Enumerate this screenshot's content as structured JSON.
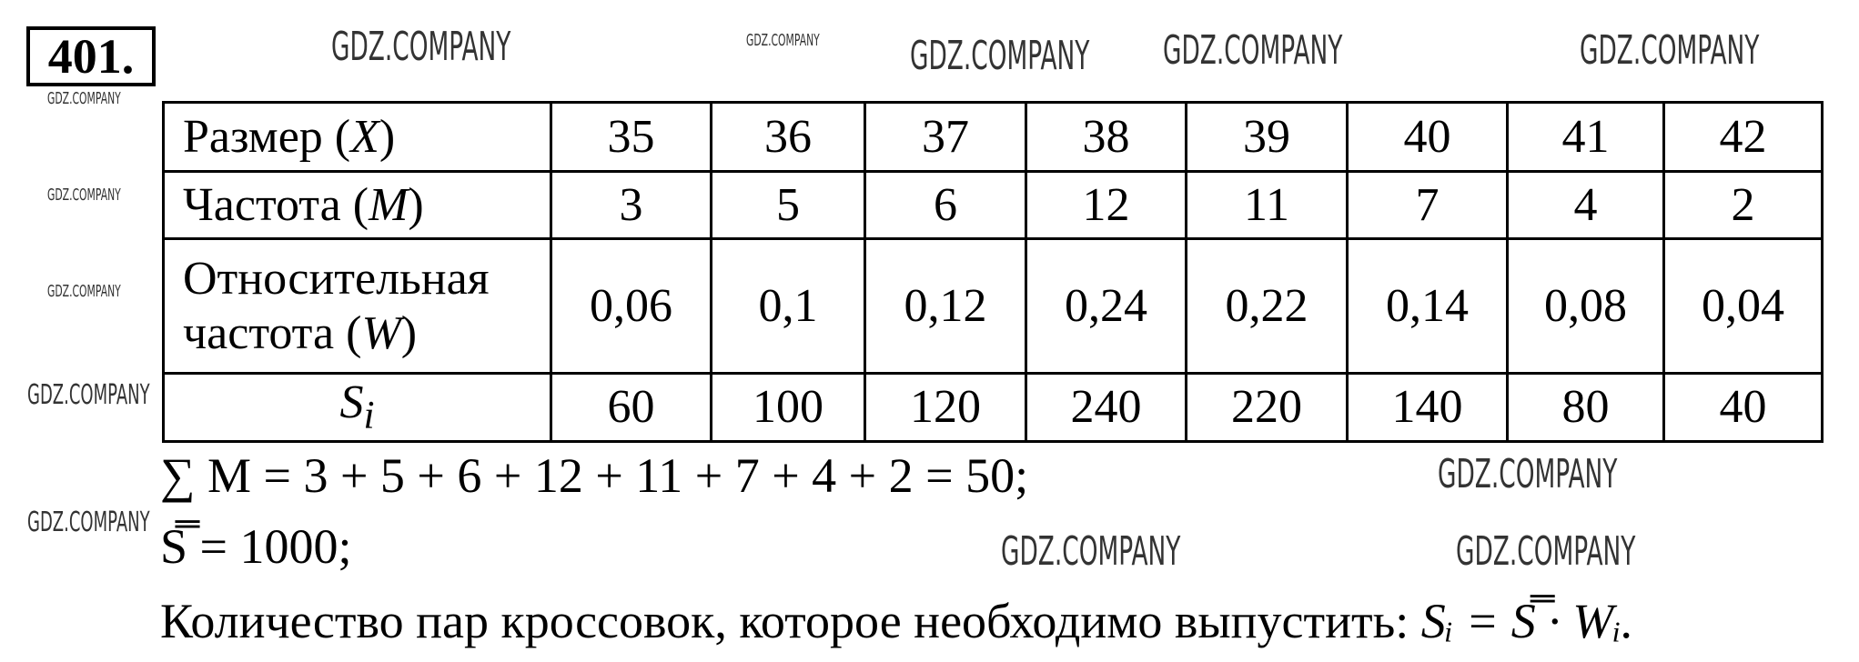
{
  "problem_number": "401.",
  "table": {
    "rows": [
      {
        "label": "Размер (X)",
        "label_text": "Размер ",
        "var": "X",
        "values": [
          "35",
          "36",
          "37",
          "38",
          "39",
          "40",
          "41",
          "42"
        ]
      },
      {
        "label": "Частота (M)",
        "label_text": "Частота ",
        "var": "M",
        "values": [
          "3",
          "5",
          "6",
          "12",
          "11",
          "7",
          "4",
          "2"
        ]
      },
      {
        "label": "Относительная частота (W)",
        "label_text1": "Относительная",
        "label_text2": "частота ",
        "var": "W",
        "values": [
          "0,06",
          "0,1",
          "0,12",
          "0,24",
          "0,22",
          "0,14",
          "0,08",
          "0,04"
        ]
      },
      {
        "label": "Si",
        "var": "S",
        "sub": "i",
        "values": [
          "60",
          "100",
          "120",
          "240",
          "220",
          "140",
          "80",
          "40"
        ]
      }
    ]
  },
  "lines": {
    "sum": "∑ M = 3 + 5 + 6 + 12 + 11 + 7 + 4 + 2 = 50;",
    "mean": "S̿ = 1000;",
    "text": "Количество пар кроссовок, которое необходимо выпустить: ",
    "formula": "Sᵢ = S̿ · Wᵢ."
  },
  "watermark": "GDZ.COMPANY"
}
